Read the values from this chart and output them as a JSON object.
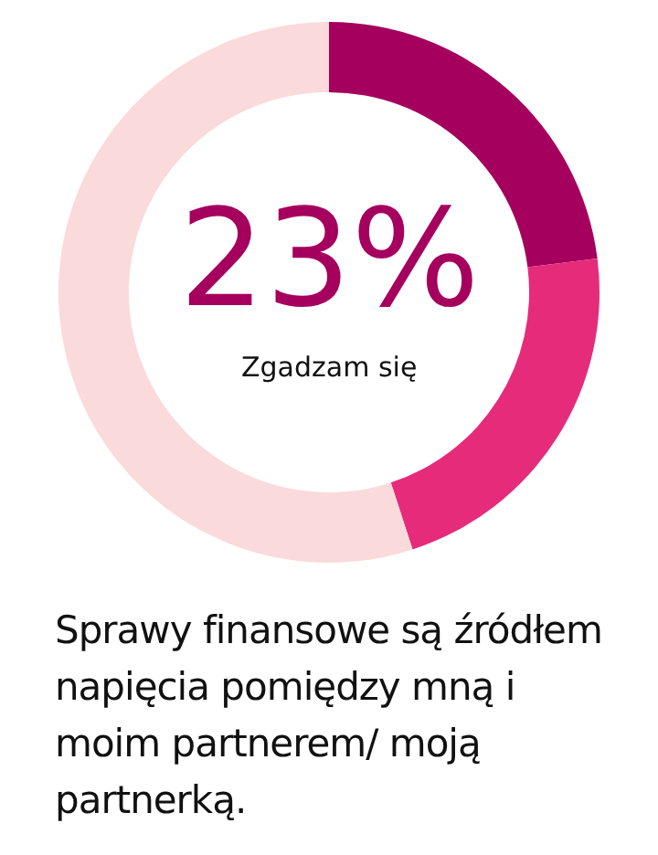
{
  "chart_data": {
    "type": "donut",
    "title": "Sprawy finansowe są źródłem napięcia pomiędzy mną i moim partnerem/ moją partnerką.",
    "categories": [
      "Zgadzam się",
      null,
      null
    ],
    "values": [
      23,
      22,
      55
    ],
    "colors": [
      "#a5005e",
      "#e62b7b",
      "#fadadb"
    ],
    "value_labels": [
      "23%",
      null,
      null
    ]
  }
}
